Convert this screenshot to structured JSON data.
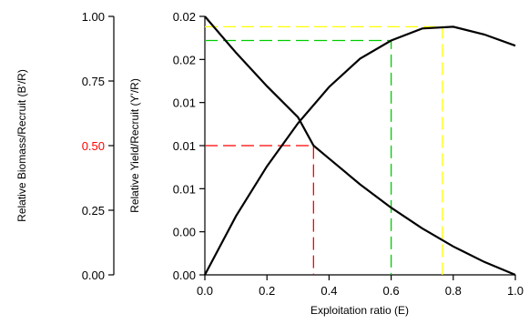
{
  "chart_data": {
    "type": "line",
    "xlabel": "Exploitation ratio (E)",
    "ylabel_left": "Relative Biomass/Recruit (B'/R)",
    "ylabel_right": "Relative Yield/Recruit (Y'/R)",
    "x_ticks": [
      "0.0",
      "0.2",
      "0.4",
      "0.6",
      "0.8",
      "1.0"
    ],
    "left_ticks": [
      "0.00",
      "0.25",
      "0.50",
      "0.75",
      "1.00"
    ],
    "right_ticks": [
      "0.00",
      "0.00",
      "0.01",
      "0.01",
      "0.01",
      "0.02",
      "0.02"
    ],
    "xlim": [
      0,
      1
    ],
    "left_ylim": [
      0,
      1
    ],
    "right_ylim": [
      0,
      0.03
    ],
    "highlight_tick_color": "#ff0000",
    "series": [
      {
        "axis": "left",
        "color": "#000000",
        "x": [
          0,
          0.1,
          0.2,
          0.3,
          0.35,
          0.4,
          0.5,
          0.6,
          0.7,
          0.8,
          0.9,
          1.0
        ],
        "y": [
          1.0,
          0.86,
          0.73,
          0.61,
          0.5,
          0.45,
          0.35,
          0.26,
          0.18,
          0.11,
          0.05,
          0.0
        ]
      },
      {
        "axis": "right",
        "color": "#000000",
        "x": [
          0,
          0.1,
          0.2,
          0.3,
          0.4,
          0.5,
          0.6,
          0.7,
          0.8,
          0.9,
          1.0
        ],
        "y": [
          0.0,
          0.0068,
          0.0126,
          0.0176,
          0.0218,
          0.0251,
          0.0272,
          0.0286,
          0.0288,
          0.0279,
          0.0266
        ]
      }
    ],
    "reference_lines": [
      {
        "color": "#ff0000",
        "x": 0.35,
        "y": 0.5,
        "axis": "left"
      },
      {
        "color": "#00cc00",
        "x": 0.6,
        "y": 0.0272,
        "axis": "right"
      },
      {
        "color": "#ffff00",
        "x": 0.765,
        "y": 0.0288,
        "axis": "right"
      }
    ]
  }
}
